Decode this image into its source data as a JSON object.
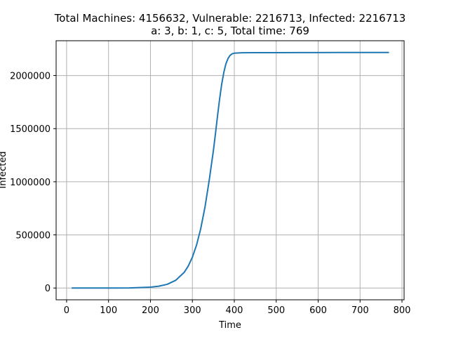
{
  "chart_data": {
    "type": "line",
    "title_line1": "Total Machines: 4156632, Vulnerable: 2216713, Infected: 2216713",
    "title_line2": "a: 3, b: 1, c: 5, Total time: 769",
    "xlabel": "Time",
    "ylabel": "Infected",
    "xlim": [
      -25,
      805
    ],
    "ylim": [
      -110835,
      2327550
    ],
    "grid": true,
    "line_color": "#1f77b4",
    "grid_color": "#b0b0b0",
    "x_ticks": [
      0,
      100,
      200,
      300,
      400,
      500,
      600,
      700,
      800
    ],
    "x_tick_labels": [
      "0",
      "100",
      "200",
      "300",
      "400",
      "500",
      "600",
      "700",
      "800"
    ],
    "y_ticks": [
      0,
      500000,
      1000000,
      1500000,
      2000000
    ],
    "y_tick_labels": [
      "0",
      "500000",
      "1000000",
      "1500000",
      "2000000"
    ],
    "series": [
      {
        "x": [
          12,
          50,
          100,
          150,
          200,
          220,
          240,
          260,
          280,
          290,
          300,
          310,
          320,
          330,
          340,
          350,
          355,
          360,
          365,
          370,
          375,
          380,
          385,
          390,
          395,
          400,
          410,
          420,
          450,
          500,
          550,
          600,
          650,
          700,
          769
        ],
        "y": [
          0,
          0,
          200,
          1000,
          8000,
          17000,
          35000,
          72000,
          145000,
          205000,
          290000,
          405000,
          560000,
          760000,
          1010000,
          1290000,
          1450000,
          1620000,
          1780000,
          1920000,
          2030000,
          2110000,
          2160000,
          2190000,
          2205000,
          2210000,
          2213000,
          2214000,
          2215000,
          2215500,
          2216000,
          2216300,
          2216500,
          2216600,
          2216713
        ]
      }
    ]
  }
}
